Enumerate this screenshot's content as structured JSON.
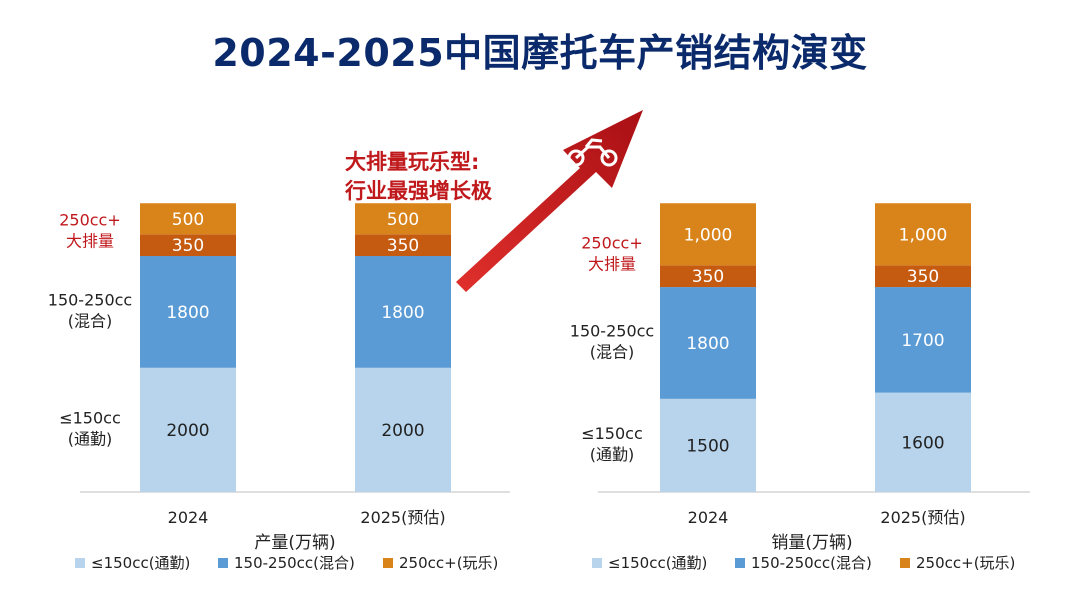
{
  "title": "2024-2025中国摩托车产销结构演变",
  "annotation": {
    "line1": "大排量玩乐型:",
    "line2": "行业最强增长极"
  },
  "colors": {
    "commute": "#b7d4ec",
    "mixed": "#5b9bd5",
    "big_mid": "#c55a11",
    "big_top": "#d9831b",
    "label_red": "#c0191c",
    "arrow": "#c0191c",
    "title": "#0b2a6b"
  },
  "segment_labels": {
    "commute": [
      "≤150cc",
      "(通勤)"
    ],
    "mixed": [
      "150-250cc",
      "(混合)"
    ],
    "big": [
      "250cc+",
      "大排量"
    ]
  },
  "chart_data": [
    {
      "type": "bar",
      "stacked": true,
      "xlabel": "产量(万辆)",
      "categories": [
        "2024",
        "2025(预估)"
      ],
      "ylim": [
        0,
        4000
      ],
      "series": [
        {
          "name": "≤150cc(通勤)",
          "key": "commute",
          "values": [
            2000,
            2000
          ],
          "labels": [
            "2000",
            "2000"
          ]
        },
        {
          "name": "150-250cc(混合)",
          "key": "mixed",
          "values": [
            1800,
            1800
          ],
          "labels": [
            "1800",
            "1800"
          ]
        },
        {
          "name": "250cc+(玩乐)",
          "key": "big",
          "stack_parts": [
            {
              "values": [
                350,
                350
              ],
              "labels": [
                "350",
                "350"
              ],
              "color_key": "big_mid"
            },
            {
              "values": [
                500,
                500
              ],
              "labels": [
                "500",
                "500"
              ],
              "color_key": "big_top"
            }
          ]
        }
      ],
      "legend": [
        "≤150cc(通勤)",
        "150-250cc(混合)",
        "250cc+(玩乐)"
      ]
    },
    {
      "type": "bar",
      "stacked": true,
      "xlabel": "销量(万辆)",
      "categories": [
        "2024",
        "2025(预估)"
      ],
      "ylim": [
        0,
        4000
      ],
      "series": [
        {
          "name": "≤150cc(通勤)",
          "key": "commute",
          "values": [
            1500,
            1600
          ],
          "labels": [
            "1500",
            "1600"
          ]
        },
        {
          "name": "150-250cc(混合)",
          "key": "mixed",
          "values": [
            1800,
            1700
          ],
          "labels": [
            "1800",
            "1700"
          ]
        },
        {
          "name": "250cc+(玩乐)",
          "key": "big",
          "stack_parts": [
            {
              "values": [
                350,
                350
              ],
              "labels": [
                "350",
                "350"
              ],
              "color_key": "big_mid"
            },
            {
              "values": [
                1000,
                1000
              ],
              "labels": [
                "1,000",
                "1,000"
              ],
              "color_key": "big_top"
            }
          ]
        }
      ],
      "legend": [
        "≤150cc(通勤)",
        "150-250cc(混合)",
        "250cc+(玩乐)"
      ]
    }
  ]
}
